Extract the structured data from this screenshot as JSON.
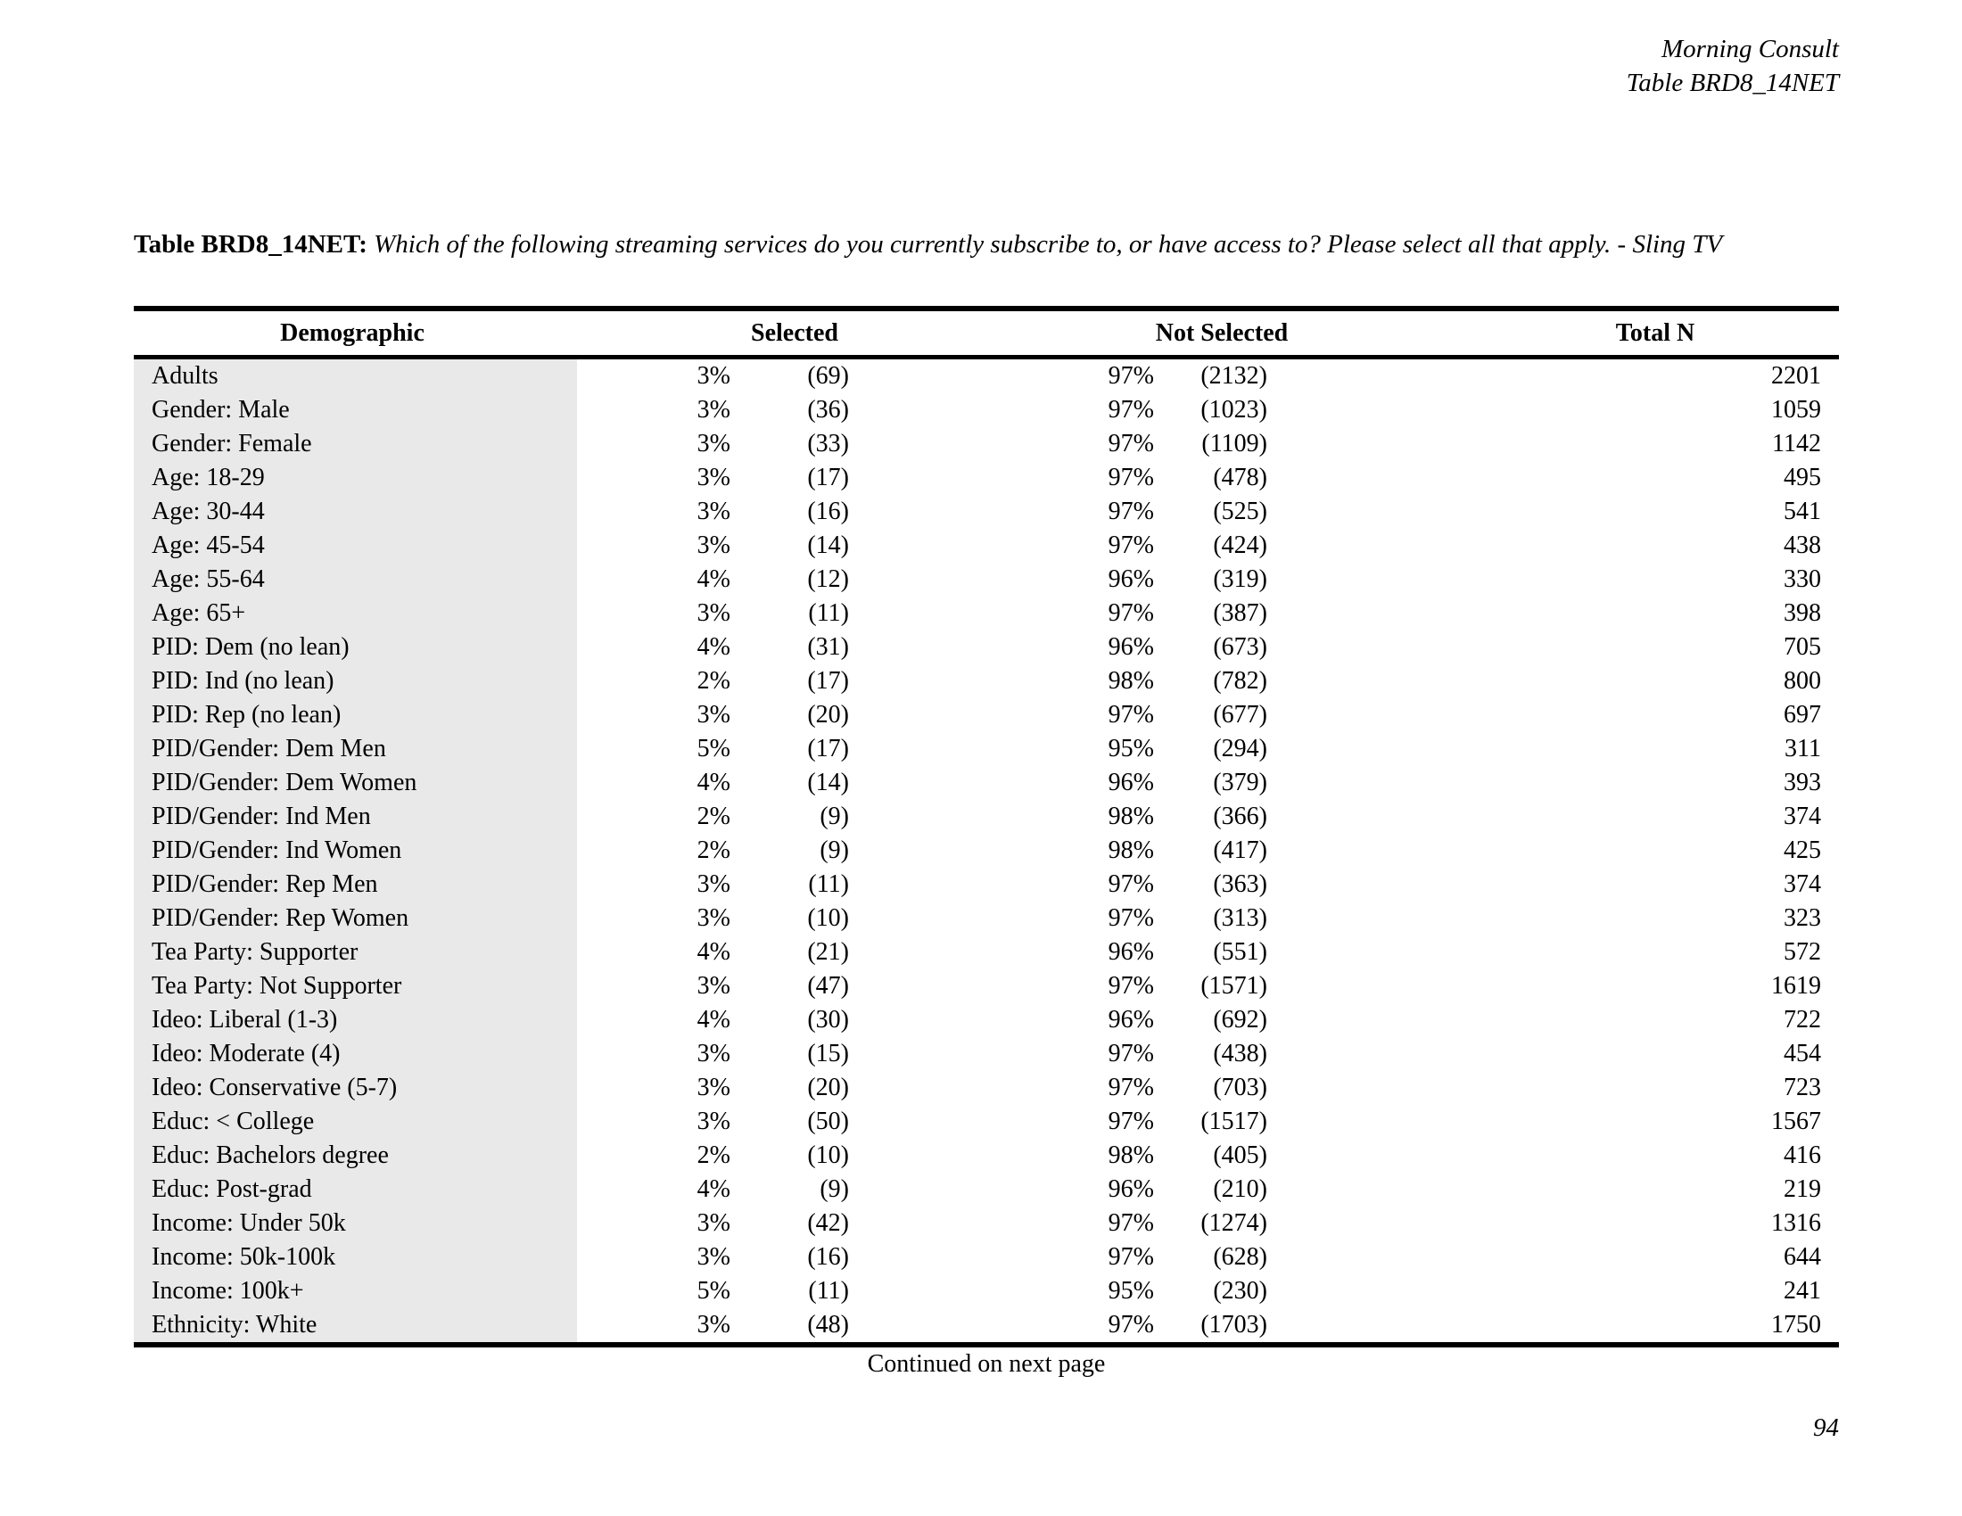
{
  "header": {
    "line1": "Morning Consult",
    "line2": "Table BRD8_14NET"
  },
  "title": {
    "label": "Table BRD8_14NET:",
    "question": "Which of the following streaming services do you currently subscribe to, or have access to? Please select all that apply. - Sling TV"
  },
  "table": {
    "headers": {
      "demographic": "Demographic",
      "selected": "Selected",
      "not_selected": "Not Selected",
      "total_n": "Total N"
    },
    "rows": [
      {
        "demographic": "Adults",
        "selected_pct": "3%",
        "selected_n": "(69)",
        "not_selected_pct": "97%",
        "not_selected_n": "(2132)",
        "total_n": "2201"
      },
      {
        "demographic": "Gender: Male",
        "selected_pct": "3%",
        "selected_n": "(36)",
        "not_selected_pct": "97%",
        "not_selected_n": "(1023)",
        "total_n": "1059"
      },
      {
        "demographic": "Gender: Female",
        "selected_pct": "3%",
        "selected_n": "(33)",
        "not_selected_pct": "97%",
        "not_selected_n": "(1109)",
        "total_n": "1142"
      },
      {
        "demographic": "Age: 18-29",
        "selected_pct": "3%",
        "selected_n": "(17)",
        "not_selected_pct": "97%",
        "not_selected_n": "(478)",
        "total_n": "495"
      },
      {
        "demographic": "Age: 30-44",
        "selected_pct": "3%",
        "selected_n": "(16)",
        "not_selected_pct": "97%",
        "not_selected_n": "(525)",
        "total_n": "541"
      },
      {
        "demographic": "Age: 45-54",
        "selected_pct": "3%",
        "selected_n": "(14)",
        "not_selected_pct": "97%",
        "not_selected_n": "(424)",
        "total_n": "438"
      },
      {
        "demographic": "Age: 55-64",
        "selected_pct": "4%",
        "selected_n": "(12)",
        "not_selected_pct": "96%",
        "not_selected_n": "(319)",
        "total_n": "330"
      },
      {
        "demographic": "Age: 65+",
        "selected_pct": "3%",
        "selected_n": "(11)",
        "not_selected_pct": "97%",
        "not_selected_n": "(387)",
        "total_n": "398"
      },
      {
        "demographic": "PID: Dem (no lean)",
        "selected_pct": "4%",
        "selected_n": "(31)",
        "not_selected_pct": "96%",
        "not_selected_n": "(673)",
        "total_n": "705"
      },
      {
        "demographic": "PID: Ind (no lean)",
        "selected_pct": "2%",
        "selected_n": "(17)",
        "not_selected_pct": "98%",
        "not_selected_n": "(782)",
        "total_n": "800"
      },
      {
        "demographic": "PID: Rep (no lean)",
        "selected_pct": "3%",
        "selected_n": "(20)",
        "not_selected_pct": "97%",
        "not_selected_n": "(677)",
        "total_n": "697"
      },
      {
        "demographic": "PID/Gender: Dem Men",
        "selected_pct": "5%",
        "selected_n": "(17)",
        "not_selected_pct": "95%",
        "not_selected_n": "(294)",
        "total_n": "311"
      },
      {
        "demographic": "PID/Gender: Dem Women",
        "selected_pct": "4%",
        "selected_n": "(14)",
        "not_selected_pct": "96%",
        "not_selected_n": "(379)",
        "total_n": "393"
      },
      {
        "demographic": "PID/Gender: Ind Men",
        "selected_pct": "2%",
        "selected_n": "(9)",
        "not_selected_pct": "98%",
        "not_selected_n": "(366)",
        "total_n": "374"
      },
      {
        "demographic": "PID/Gender: Ind Women",
        "selected_pct": "2%",
        "selected_n": "(9)",
        "not_selected_pct": "98%",
        "not_selected_n": "(417)",
        "total_n": "425"
      },
      {
        "demographic": "PID/Gender: Rep Men",
        "selected_pct": "3%",
        "selected_n": "(11)",
        "not_selected_pct": "97%",
        "not_selected_n": "(363)",
        "total_n": "374"
      },
      {
        "demographic": "PID/Gender: Rep Women",
        "selected_pct": "3%",
        "selected_n": "(10)",
        "not_selected_pct": "97%",
        "not_selected_n": "(313)",
        "total_n": "323"
      },
      {
        "demographic": "Tea Party: Supporter",
        "selected_pct": "4%",
        "selected_n": "(21)",
        "not_selected_pct": "96%",
        "not_selected_n": "(551)",
        "total_n": "572"
      },
      {
        "demographic": "Tea Party: Not Supporter",
        "selected_pct": "3%",
        "selected_n": "(47)",
        "not_selected_pct": "97%",
        "not_selected_n": "(1571)",
        "total_n": "1619"
      },
      {
        "demographic": "Ideo: Liberal (1-3)",
        "selected_pct": "4%",
        "selected_n": "(30)",
        "not_selected_pct": "96%",
        "not_selected_n": "(692)",
        "total_n": "722"
      },
      {
        "demographic": "Ideo: Moderate (4)",
        "selected_pct": "3%",
        "selected_n": "(15)",
        "not_selected_pct": "97%",
        "not_selected_n": "(438)",
        "total_n": "454"
      },
      {
        "demographic": "Ideo: Conservative (5-7)",
        "selected_pct": "3%",
        "selected_n": "(20)",
        "not_selected_pct": "97%",
        "not_selected_n": "(703)",
        "total_n": "723"
      },
      {
        "demographic": "Educ: < College",
        "selected_pct": "3%",
        "selected_n": "(50)",
        "not_selected_pct": "97%",
        "not_selected_n": "(1517)",
        "total_n": "1567"
      },
      {
        "demographic": "Educ: Bachelors degree",
        "selected_pct": "2%",
        "selected_n": "(10)",
        "not_selected_pct": "98%",
        "not_selected_n": "(405)",
        "total_n": "416"
      },
      {
        "demographic": "Educ: Post-grad",
        "selected_pct": "4%",
        "selected_n": "(9)",
        "not_selected_pct": "96%",
        "not_selected_n": "(210)",
        "total_n": "219"
      },
      {
        "demographic": "Income: Under 50k",
        "selected_pct": "3%",
        "selected_n": "(42)",
        "not_selected_pct": "97%",
        "not_selected_n": "(1274)",
        "total_n": "1316"
      },
      {
        "demographic": "Income: 50k-100k",
        "selected_pct": "3%",
        "selected_n": "(16)",
        "not_selected_pct": "97%",
        "not_selected_n": "(628)",
        "total_n": "644"
      },
      {
        "demographic": "Income: 100k+",
        "selected_pct": "5%",
        "selected_n": "(11)",
        "not_selected_pct": "95%",
        "not_selected_n": "(230)",
        "total_n": "241"
      },
      {
        "demographic": "Ethnicity: White",
        "selected_pct": "3%",
        "selected_n": "(48)",
        "not_selected_pct": "97%",
        "not_selected_n": "(1703)",
        "total_n": "1750"
      }
    ]
  },
  "footer": {
    "continued": "Continued on next page",
    "page_number": "94"
  }
}
